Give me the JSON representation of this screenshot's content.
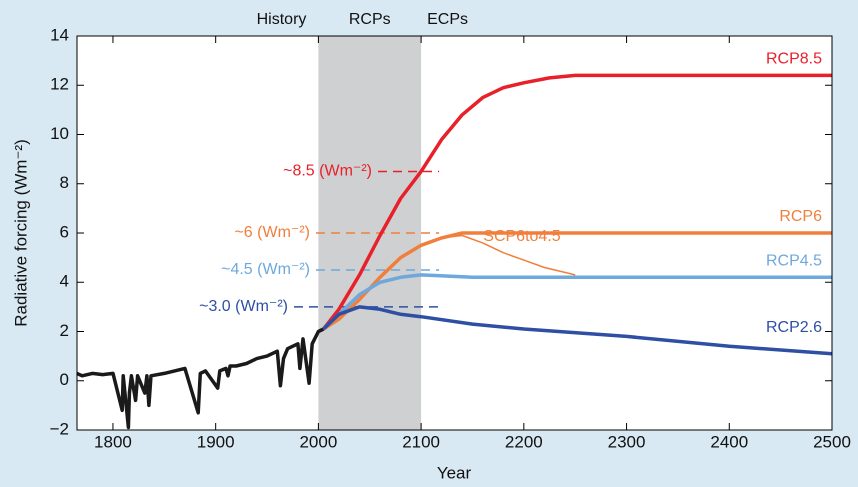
{
  "chart_data": {
    "type": "line",
    "x_label": "Year",
    "y_label": "Radiative forcing (Wm⁻²)",
    "xlim": [
      1765,
      2500
    ],
    "ylim": [
      -2,
      14
    ],
    "xticks": [
      1800,
      1900,
      2000,
      2100,
      2200,
      2300,
      2400,
      2500
    ],
    "yticks": [
      {
        "value": -2,
        "label": "−2"
      },
      0,
      2,
      4,
      6,
      8,
      10,
      12,
      14
    ],
    "shaded_span": [
      2000,
      2100
    ],
    "shaded_color": "#cfd0d2",
    "period_labels": [
      "History",
      "RCPs",
      "ECPs"
    ],
    "reference_lines": [
      {
        "label": "~8.5 (Wm⁻²)",
        "value": 8.5,
        "color": "#e8202a"
      },
      {
        "label": "~6 (Wm⁻²)",
        "value": 6,
        "color": "#f07f3c"
      },
      {
        "label": "~4.5 (Wm⁻²)",
        "value": 4.5,
        "color": "#6fa8dc"
      },
      {
        "label": "~3.0 (Wm⁻²)",
        "value": 3.0,
        "color": "#2e4fa3"
      }
    ],
    "series": [
      {
        "color": "#1a1a1a",
        "x": [
          1765,
          1770,
          1780,
          1790,
          1800,
          1809,
          1810,
          1815,
          1816,
          1818,
          1822,
          1824,
          1831,
          1833,
          1835,
          1837,
          1850,
          1860,
          1870,
          1883,
          1885,
          1890,
          1902,
          1904,
          1910,
          1912,
          1914,
          1920,
          1930,
          1940,
          1950,
          1960,
          1963,
          1966,
          1970,
          1980,
          1982,
          1985,
          1991,
          1994,
          2000,
          2005
        ],
        "values": [
          0.3,
          0.2,
          0.3,
          0.25,
          0.3,
          -1.2,
          0.2,
          -1.9,
          -0.5,
          0.2,
          -0.8,
          0.2,
          -0.5,
          0.2,
          -1.0,
          0.2,
          0.3,
          0.4,
          0.5,
          -1.3,
          0.3,
          0.4,
          -0.3,
          0.4,
          0.5,
          0.2,
          0.6,
          0.6,
          0.7,
          0.9,
          1.0,
          1.2,
          -0.2,
          0.9,
          1.3,
          1.5,
          0.5,
          1.7,
          -0.1,
          1.5,
          2.0,
          2.1
        ]
      },
      {
        "name": "RCP8.5",
        "color": "#e8202a",
        "x": [
          2005,
          2020,
          2040,
          2060,
          2080,
          2100,
          2120,
          2140,
          2160,
          2180,
          2200,
          2225,
          2250,
          2300,
          2400,
          2500
        ],
        "values": [
          2.1,
          2.9,
          4.3,
          5.9,
          7.4,
          8.5,
          9.8,
          10.8,
          11.5,
          11.9,
          12.1,
          12.3,
          12.4,
          12.4,
          12.4,
          12.4
        ]
      },
      {
        "name": "RCP6",
        "color": "#f07f3c",
        "x": [
          2005,
          2020,
          2040,
          2060,
          2080,
          2100,
          2120,
          2140,
          2150,
          2500
        ],
        "values": [
          2.1,
          2.5,
          3.3,
          4.2,
          5.0,
          5.5,
          5.8,
          6.0,
          6.0,
          6.0
        ]
      },
      {
        "name": "RCP4.5",
        "color": "#6fa8dc",
        "x": [
          2005,
          2020,
          2040,
          2060,
          2080,
          2100,
          2150,
          2500
        ],
        "values": [
          2.1,
          2.7,
          3.5,
          4.0,
          4.2,
          4.3,
          4.2,
          4.2
        ]
      },
      {
        "name": "RCP2.6",
        "color": "#2e4fa3",
        "x": [
          2005,
          2020,
          2040,
          2060,
          2080,
          2100,
          2150,
          2200,
          2300,
          2400,
          2500
        ],
        "values": [
          2.1,
          2.7,
          3.0,
          2.9,
          2.7,
          2.6,
          2.3,
          2.1,
          1.8,
          1.4,
          1.1
        ]
      },
      {
        "name": "SCP6to4.5",
        "color": "#f07f3c",
        "x": [
          2100,
          2120,
          2140,
          2160,
          2180,
          2200,
          2220,
          2250
        ],
        "values": [
          5.5,
          5.8,
          5.9,
          5.6,
          5.2,
          4.9,
          4.6,
          4.3
        ]
      }
    ]
  }
}
